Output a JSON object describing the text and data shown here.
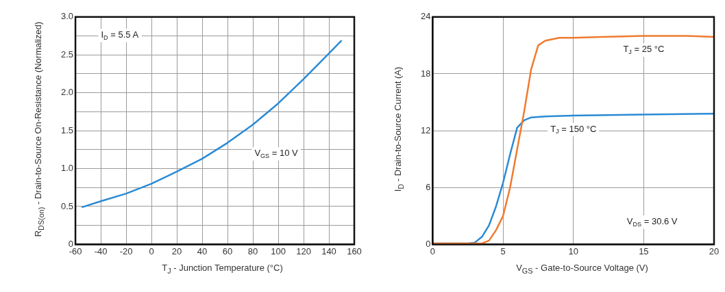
{
  "chart_data": [
    {
      "type": "line",
      "xlabel": "T$_{J}$ - Junction Temperature (°C)",
      "ylabel": "R$_{DS(on)}$ - Drain-to-Source On-Resistance (Normalized)",
      "x": [
        -55,
        -40,
        -20,
        0,
        20,
        40,
        60,
        80,
        100,
        120,
        140,
        150
      ],
      "series": [
        {
          "color": "#2a8ad4",
          "values": [
            0.49,
            0.57,
            0.67,
            0.8,
            0.96,
            1.13,
            1.34,
            1.58,
            1.86,
            2.18,
            2.52,
            2.69
          ]
        }
      ],
      "xlim": [
        -60,
        160
      ],
      "xticks": [
        -60,
        -40,
        -20,
        0,
        20,
        40,
        60,
        80,
        100,
        120,
        140,
        160
      ],
      "ylim": [
        0,
        3
      ],
      "yticks": [
        0,
        {
          "value": 0.25,
          "label": null
        },
        0.5,
        {
          "value": 0.75,
          "label": null
        },
        "1.0",
        {
          "value": 1.25,
          "label": null
        },
        1.5,
        {
          "value": 1.75,
          "label": null
        },
        "2.0",
        {
          "value": 2.25,
          "label": null
        },
        2.5,
        {
          "value": 2.75,
          "label": null
        },
        "3.0"
      ],
      "grid": true,
      "legend": false,
      "marker": "none",
      "line_style": "solid",
      "annotations": [
        "I$_{D}$ = 5.5 A",
        "V$_{GS}$ = 10 V"
      ]
    },
    {
      "type": "line",
      "xlabel": "V$_{GS}$ - Gate-to-Source Voltage (V)",
      "ylabel": "I$_{D}$ - Drain-to-Source Current (A)",
      "series": [
        {
          "name": "T$_{J}$ = 25 °C",
          "color": "#f07a2e",
          "x": [
            0,
            2,
            3.5,
            4,
            4.5,
            5,
            5.5,
            6,
            6.5,
            7,
            7.5,
            8,
            9,
            10,
            12,
            15,
            18,
            20
          ],
          "values": [
            0.1,
            0.1,
            0.1,
            0.4,
            1.5,
            3,
            6,
            10,
            14,
            18.5,
            21,
            21.5,
            21.8,
            21.8,
            21.9,
            22,
            22,
            21.9
          ]
        },
        {
          "name": "T$_{J}$ = 150 °C",
          "color": "#2a8ad4",
          "x": [
            0,
            2.5,
            3,
            3.5,
            4,
            4.5,
            5,
            5.5,
            6,
            6.5,
            7,
            8,
            10,
            15,
            20
          ],
          "values": [
            0.1,
            0.1,
            0.2,
            0.8,
            2,
            4,
            6.5,
            9.5,
            12.3,
            13.1,
            13.4,
            13.5,
            13.6,
            13.7,
            13.8
          ]
        }
      ],
      "xlim": [
        0,
        20
      ],
      "xticks": [
        0,
        5,
        10,
        15,
        20
      ],
      "ylim": [
        0,
        24
      ],
      "yticks": [
        0,
        6,
        12,
        18,
        24
      ],
      "grid": true,
      "legend": false,
      "marker": "none",
      "line_style": "solid",
      "annotations": [
        "V$_{DS}$ = 30.6 V"
      ]
    }
  ]
}
